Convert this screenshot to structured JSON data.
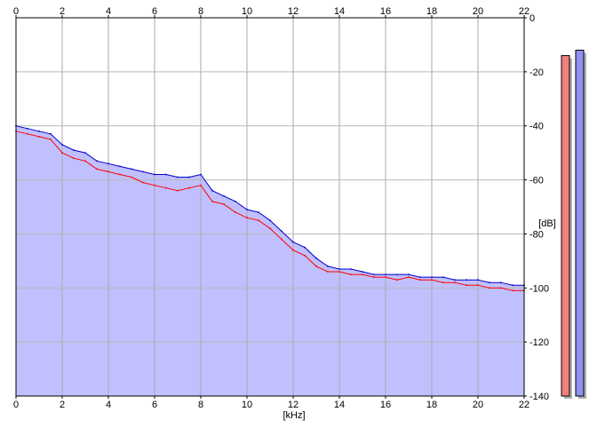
{
  "chart_data": {
    "type": "line",
    "xlabel": "[kHz]",
    "ylabel": "[dB]",
    "xlim": [
      0,
      22
    ],
    "ylim": [
      -140,
      0
    ],
    "x_ticks": [
      "0",
      "2",
      "4",
      "6",
      "8",
      "10",
      "12",
      "14",
      "16",
      "18",
      "20",
      "22"
    ],
    "y_ticks": [
      "0",
      "-20",
      "-40",
      "-60",
      "-80",
      "-100",
      "-120",
      "-140"
    ],
    "grid": true,
    "axes_on": [
      "top",
      "bottom",
      "right"
    ],
    "fill_color": "#c0c0ff",
    "series": [
      {
        "color": "#ff0000",
        "x": [
          0,
          0.5,
          1,
          1.5,
          2,
          2.5,
          3,
          3.5,
          4,
          4.5,
          5,
          5.5,
          6,
          6.5,
          7,
          7.5,
          8,
          8.5,
          9,
          9.5,
          10,
          10.5,
          11,
          11.5,
          12,
          12.5,
          13,
          13.5,
          14,
          14.5,
          15,
          15.5,
          16,
          16.5,
          17,
          17.5,
          18,
          18.5,
          19,
          19.5,
          20,
          20.5,
          21,
          21.5,
          22
        ],
        "values": [
          -42,
          -43,
          -44,
          -45,
          -50,
          -52,
          -53,
          -56,
          -57,
          -58,
          -59,
          -61,
          -62,
          -63,
          -64,
          -63,
          -62,
          -68,
          -69,
          -72,
          -74,
          -75,
          -78,
          -82,
          -86,
          -88,
          -92,
          -94,
          -94,
          -95,
          -95,
          -96,
          -96,
          -97,
          -96,
          -97,
          -97,
          -98,
          -98,
          -99,
          -99,
          -100,
          -100,
          -101,
          -101
        ]
      },
      {
        "color": "#0000cc",
        "x": [
          0,
          0.5,
          1,
          1.5,
          2,
          2.5,
          3,
          3.5,
          4,
          4.5,
          5,
          5.5,
          6,
          6.5,
          7,
          7.5,
          8,
          8.5,
          9,
          9.5,
          10,
          10.5,
          11,
          11.5,
          12,
          12.5,
          13,
          13.5,
          14,
          14.5,
          15,
          15.5,
          16,
          16.5,
          17,
          17.5,
          18,
          18.5,
          19,
          19.5,
          20,
          20.5,
          21,
          21.5,
          22
        ],
        "values": [
          -40,
          -41,
          -42,
          -43,
          -47,
          -49,
          -50,
          -53,
          -54,
          -55,
          -56,
          -57,
          -58,
          -58,
          -59,
          -59,
          -58,
          -64,
          -66,
          -68,
          -71,
          -72,
          -75,
          -79,
          -83,
          -85,
          -89,
          -92,
          -93,
          -93,
          -94,
          -95,
          -95,
          -95,
          -95,
          -96,
          -96,
          -96,
          -97,
          -97,
          -97,
          -98,
          -98,
          -99,
          -99
        ]
      }
    ],
    "level_meters": [
      {
        "color": "#f08080",
        "level_db": -14
      },
      {
        "color": "#9090f0",
        "level_db": -12
      }
    ]
  }
}
